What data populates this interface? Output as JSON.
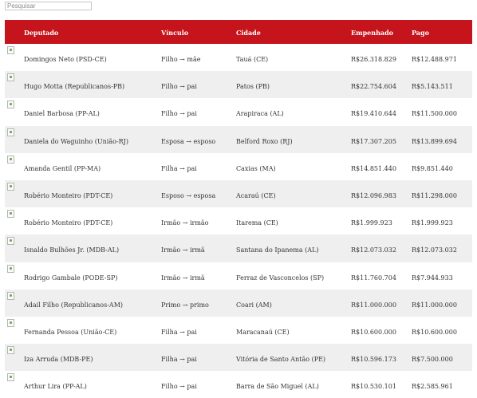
{
  "search": {
    "placeholder": "Pesquisar"
  },
  "table": {
    "headers": [
      "Deputado",
      "Vínculo",
      "Cidade",
      "Empenhado",
      "Pago"
    ],
    "rows": [
      [
        "Domingos Neto (PSD-CE)",
        "Filho → mãe",
        "Tauá (CE)",
        "R$26.318.829",
        "R$12.488.971"
      ],
      [
        "Hugo Motta (Republicanos-PB)",
        "Filho → pai",
        "Patos (PB)",
        "R$22.754.604",
        "R$5.143.511"
      ],
      [
        "Daniel Barbosa (PP-AL)",
        "Filho → pai",
        "Arapiraca (AL)",
        "R$19.410.644",
        "R$11.500.000"
      ],
      [
        "Daniela do Waguinho (União-RJ)",
        "Esposa → esposo",
        "Belford Roxo (RJ)",
        "R$17.307.205",
        "R$13.899.694"
      ],
      [
        "Amanda Gentil (PP-MA)",
        "Filha → pai",
        "Caxias (MA)",
        "R$14.851.440",
        "R$9.851.440"
      ],
      [
        "Robério Monteiro (PDT-CE)",
        "Esposo → esposa",
        "Acaraú (CE)",
        "R$12.096.983",
        "R$11.298.000"
      ],
      [
        "Robério Monteiro (PDT-CE)",
        "Irmão → irmão",
        "Itarema (CE)",
        "R$1.999.923",
        "R$1.999.923"
      ],
      [
        "Isnaldo Bulhões Jr. (MDB-AL)",
        "Irmão → irmã",
        "Santana do Ipanema (AL)",
        "R$12.073.032",
        "R$12.073.032"
      ],
      [
        "Rodrigo Gambale (PODE-SP)",
        "Irmão → irmã",
        "Ferraz de Vasconcelos (SP)",
        "R$11.760.704",
        "R$7.944.933"
      ],
      [
        "Adail Filho (Republicanos-AM)",
        "Primo → primo",
        "Coari (AM)",
        "R$11.000.000",
        "R$11.000.000"
      ],
      [
        "Fernanda Pessoa (União-CE)",
        "Filha → pai",
        "Maracanaú (CE)",
        "R$10.600.000",
        "R$10.600.000"
      ],
      [
        "Iza Arruda (MDB-PE)",
        "Filha → pai",
        "Vitória de Santo Antão (PE)",
        "R$10.596.173",
        "R$7.500.000"
      ],
      [
        "Arthur Lira (PP-AL)",
        "Filho → pai",
        "Barra de São Miguel (AL)",
        "R$10.530.101",
        "R$2.585.961"
      ]
    ]
  }
}
